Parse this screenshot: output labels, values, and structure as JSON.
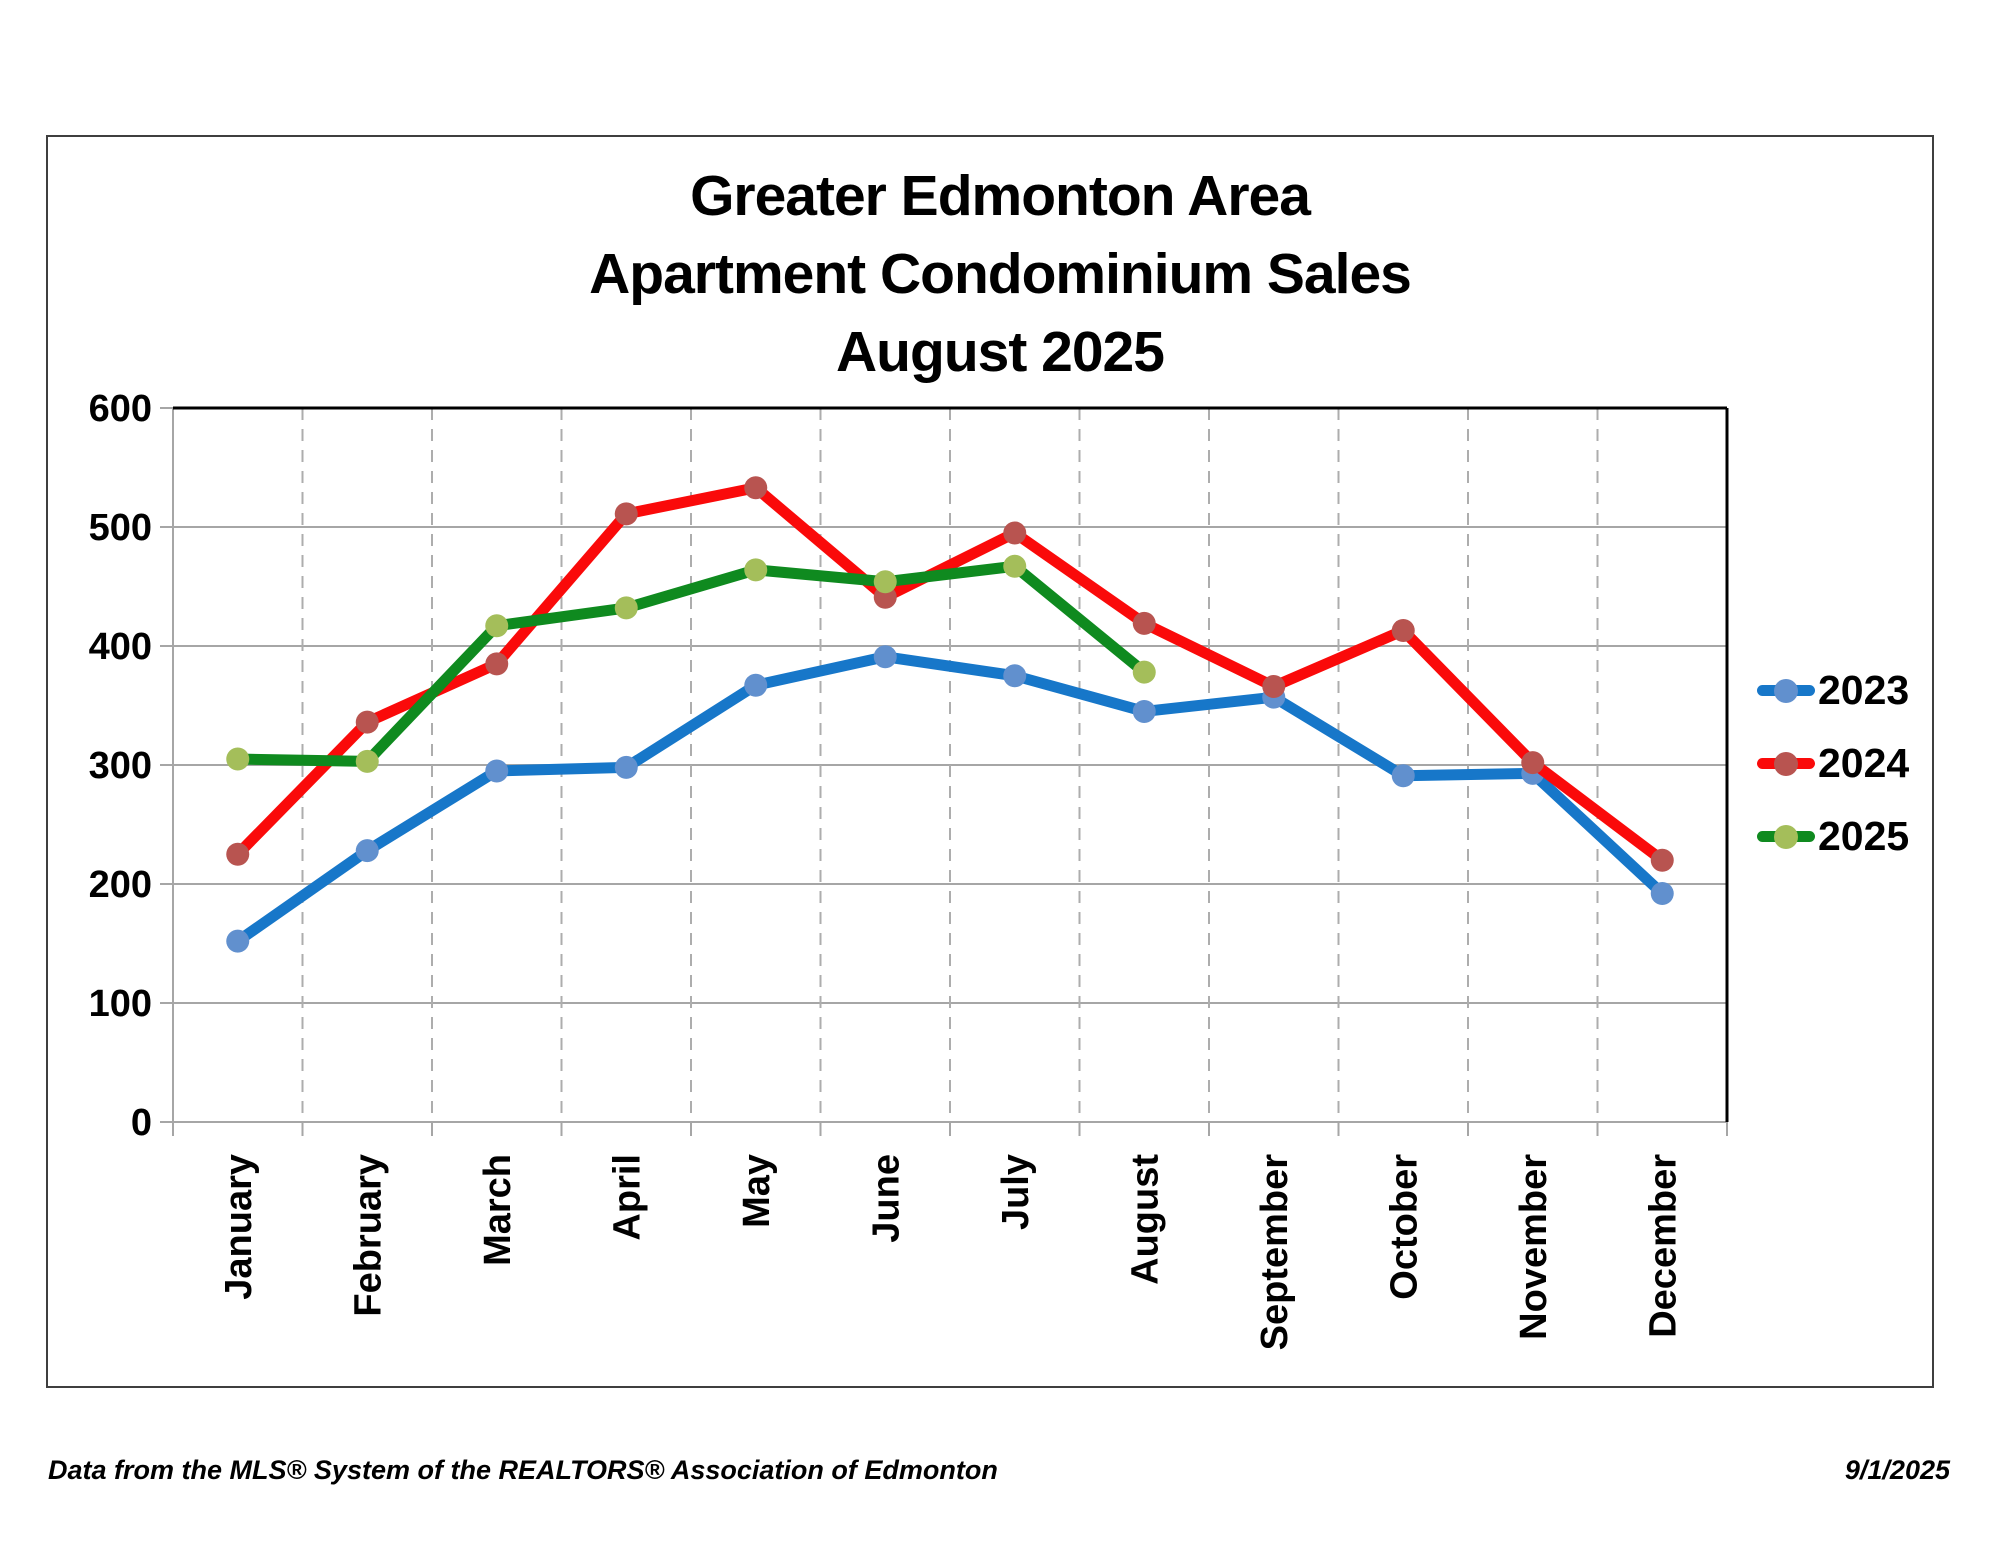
{
  "title": {
    "line1": "Greater Edmonton Area",
    "line2": "Apartment Condominium Sales",
    "line3": "August 2025"
  },
  "footer": {
    "source": "Data from the MLS® System of the REALTORS® Association of Edmonton",
    "date": "9/1/2025"
  },
  "chart_data": {
    "type": "line",
    "title": "Greater Edmonton Area Apartment Condominium Sales August 2025",
    "categories": [
      "January",
      "February",
      "March",
      "April",
      "May",
      "June",
      "July",
      "August",
      "September",
      "October",
      "November",
      "December"
    ],
    "series": [
      {
        "name": "2023",
        "line_color": "#1777C9",
        "marker_color": "#6190CE",
        "values": [
          152,
          228,
          295,
          298,
          367,
          391,
          375,
          345,
          357,
          291,
          293,
          192
        ]
      },
      {
        "name": "2024",
        "line_color": "#FA0A0A",
        "marker_color": "#B85450",
        "values": [
          225,
          336,
          385,
          511,
          533,
          441,
          495,
          419,
          366,
          413,
          302,
          220
        ]
      },
      {
        "name": "2025",
        "line_color": "#0F8A1F",
        "marker_color": "#A4BE5A",
        "values": [
          305,
          303,
          417,
          432,
          464,
          454,
          467,
          378
        ]
      }
    ],
    "xlabel": "",
    "ylabel": "",
    "ylim": [
      0,
      600
    ],
    "y_ticks": [
      0,
      100,
      200,
      300,
      400,
      500,
      600
    ],
    "grid": true,
    "legend_position": "right",
    "gridline_color": "#A6A6A6",
    "dashed_gridline_color": "#ADADAD",
    "axis_border_color": "#000000"
  }
}
